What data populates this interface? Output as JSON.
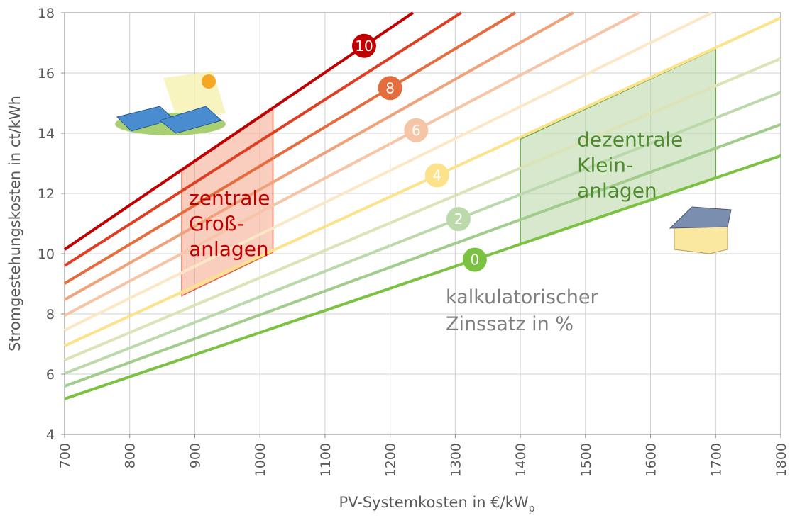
{
  "chart_data": {
    "type": "line",
    "x_label": {
      "text": "PV-Systemkosten in €/kW",
      "subscript": "p"
    },
    "y_label": "Stromgestehungskosten in ct/kWh",
    "xlim": [
      700,
      1800
    ],
    "xticks": [
      700,
      800,
      900,
      1000,
      1100,
      1200,
      1300,
      1400,
      1500,
      1600,
      1700,
      1800
    ],
    "ylim": [
      4,
      18
    ],
    "yticks": [
      4,
      6,
      8,
      10,
      12,
      14,
      16,
      18
    ],
    "grid": true,
    "series": [
      {
        "name": "0",
        "color": "#7cc242",
        "x": [
          700,
          1800
        ],
        "values": [
          5.18,
          13.25
        ],
        "label_x": 1330,
        "label_y": 9.8
      },
      {
        "color": "#a2cc8c",
        "x": [
          700,
          1800
        ],
        "values": [
          5.6,
          14.29
        ]
      },
      {
        "name": "2",
        "color": "#bcd9ac",
        "x": [
          700,
          1800
        ],
        "values": [
          6.02,
          15.36
        ],
        "label_x": 1305,
        "label_y": 11.15
      },
      {
        "color": "#dde3b6",
        "x": [
          700,
          1800
        ],
        "values": [
          6.47,
          16.48
        ]
      },
      {
        "name": "4",
        "color": "#fde28c",
        "x": [
          700,
          1800
        ],
        "values": [
          6.94,
          17.83
        ],
        "label_x": 1272,
        "label_y": 12.6
      },
      {
        "color": "#fce8c6",
        "x": [
          700,
          1694
        ],
        "values": [
          7.46,
          18
        ]
      },
      {
        "name": "6",
        "color": "#f6c4a6",
        "x": [
          700,
          1582
        ],
        "values": [
          7.95,
          18
        ],
        "label_x": 1240,
        "label_y": 14.1
      },
      {
        "color": "#f0a27a",
        "x": [
          700,
          1481
        ],
        "values": [
          8.47,
          18
        ]
      },
      {
        "name": "8",
        "color": "#e56c3c",
        "x": [
          700,
          1392
        ],
        "values": [
          9.01,
          18
        ],
        "label_x": 1200,
        "label_y": 15.5
      },
      {
        "color": "#e03e22",
        "x": [
          700,
          1309
        ],
        "values": [
          9.6,
          18
        ]
      },
      {
        "name": "10",
        "color": "#c00000",
        "x": [
          700,
          1235
        ],
        "values": [
          10.14,
          18
        ],
        "label_x": 1160,
        "label_y": 16.9
      }
    ],
    "regions": [
      {
        "lines": [
          "zentrale",
          "Groß-",
          "anlagen"
        ],
        "color": "#c00000",
        "fill": "#f4a68a",
        "stroke": "#e06040",
        "points": [
          [
            880,
            8.6
          ],
          [
            1020,
            10.05
          ],
          [
            1020,
            14.8
          ],
          [
            880,
            12.75
          ]
        ]
      },
      {
        "lines": [
          "dezentrale",
          "Klein-",
          "anlagen"
        ],
        "color": "#4e8a2e",
        "fill": "#b7d6a4",
        "stroke": "#6aa84f",
        "points": [
          [
            1400,
            10.3
          ],
          [
            1700,
            12.5
          ],
          [
            1700,
            16.8
          ],
          [
            1400,
            13.8
          ]
        ]
      }
    ],
    "annotation": [
      "kalkulatorischer",
      "Zinssatz in %"
    ]
  }
}
